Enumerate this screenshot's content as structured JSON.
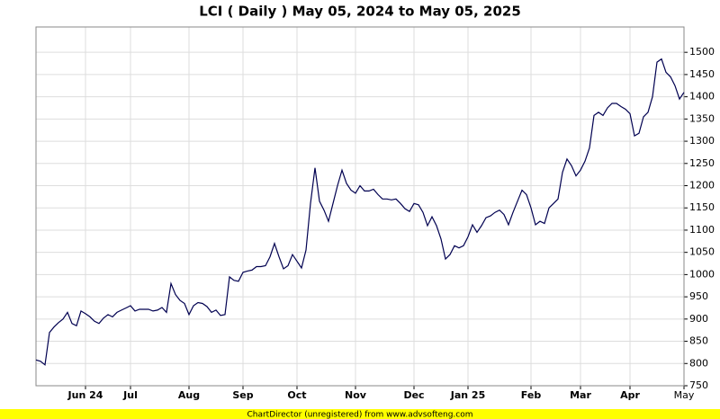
{
  "chart_data": {
    "type": "line",
    "title": "LCI ( Daily ) May 05, 2024 to May 05, 2025",
    "footer": "ChartDirector (unregistered) from www.advsofteng.com",
    "categories": [
      null,
      null,
      null,
      null,
      null,
      null,
      null,
      null,
      null,
      null,
      null,
      "Jun 24",
      null,
      null,
      null,
      null,
      null,
      null,
      null,
      null,
      null,
      "Jul",
      null,
      null,
      null,
      null,
      null,
      null,
      null,
      null,
      null,
      null,
      null,
      null,
      "Aug",
      null,
      null,
      null,
      null,
      null,
      null,
      null,
      null,
      null,
      null,
      null,
      "Sep",
      null,
      null,
      null,
      null,
      null,
      null,
      null,
      null,
      null,
      null,
      null,
      "Oct",
      null,
      null,
      null,
      null,
      null,
      null,
      null,
      null,
      null,
      null,
      null,
      null,
      "Nov",
      null,
      null,
      null,
      null,
      null,
      null,
      null,
      null,
      null,
      null,
      null,
      null,
      "Dec",
      null,
      null,
      null,
      null,
      null,
      null,
      null,
      null,
      null,
      null,
      null,
      "Jan 25",
      null,
      null,
      null,
      null,
      null,
      null,
      null,
      null,
      null,
      null,
      null,
      null,
      null,
      "Feb",
      null,
      null,
      null,
      null,
      null,
      null,
      null,
      null,
      null,
      null,
      "Mar",
      null,
      null,
      null,
      null,
      null,
      null,
      null,
      null,
      null,
      null,
      "Apr",
      null,
      null,
      null,
      null,
      null,
      null,
      null,
      null,
      null,
      null,
      null,
      "May"
    ],
    "values": [
      808,
      805,
      797,
      870,
      882,
      892,
      900,
      915,
      890,
      885,
      918,
      912,
      905,
      895,
      890,
      902,
      910,
      905,
      915,
      920,
      925,
      930,
      918,
      922,
      922,
      922,
      918,
      920,
      926,
      915,
      980,
      955,
      942,
      935,
      910,
      930,
      937,
      935,
      928,
      915,
      920,
      908,
      910,
      995,
      987,
      985,
      1005,
      1008,
      1010,
      1018,
      1018,
      1020,
      1040,
      1070,
      1040,
      1013,
      1020,
      1045,
      1030,
      1015,
      1055,
      1160,
      1240,
      1165,
      1145,
      1120,
      1160,
      1200,
      1235,
      1205,
      1190,
      1183,
      1200,
      1188,
      1188,
      1192,
      1180,
      1170,
      1170,
      1168,
      1170,
      1160,
      1148,
      1142,
      1160,
      1157,
      1140,
      1110,
      1130,
      1110,
      1080,
      1035,
      1045,
      1065,
      1060,
      1065,
      1085,
      1112,
      1095,
      1110,
      1128,
      1132,
      1140,
      1145,
      1135,
      1112,
      1140,
      1165,
      1190,
      1180,
      1150,
      1112,
      1120,
      1115,
      1150,
      1160,
      1170,
      1230,
      1260,
      1245,
      1222,
      1235,
      1255,
      1285,
      1358,
      1365,
      1358,
      1375,
      1385,
      1385,
      1378,
      1372,
      1362,
      1312,
      1318,
      1355,
      1365,
      1400,
      1478,
      1485,
      1455,
      1445,
      1425,
      1395,
      1410
    ],
    "color": "#000050",
    "ylim": [
      750,
      1557
    ],
    "yticks": [
      750,
      800,
      850,
      900,
      950,
      1000,
      1050,
      1100,
      1150,
      1200,
      1250,
      1300,
      1350,
      1400,
      1450,
      1500
    ],
    "grid": true
  }
}
